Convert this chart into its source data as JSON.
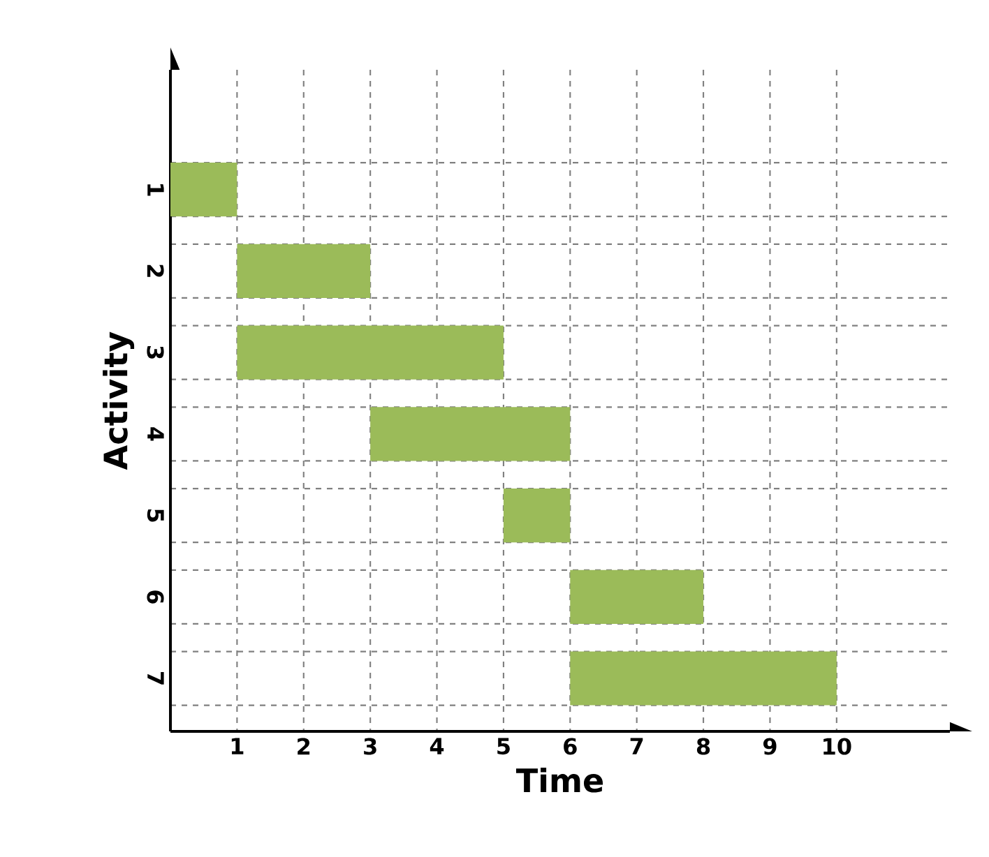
{
  "chart_data": {
    "type": "bar",
    "orientation": "horizontal",
    "xlabel": "Time",
    "ylabel": "Activity",
    "categories": [
      "1",
      "2",
      "3",
      "4",
      "5",
      "6",
      "7"
    ],
    "base": [
      0,
      1,
      1,
      3,
      5,
      6,
      6
    ],
    "values": [
      1,
      2,
      4,
      3,
      1,
      2,
      4
    ],
    "color": "#9bbb59",
    "xlim": [
      0,
      11.7
    ],
    "xticks": [
      1,
      2,
      3,
      4,
      5,
      6,
      7,
      8,
      9,
      10
    ],
    "grid": true
  }
}
